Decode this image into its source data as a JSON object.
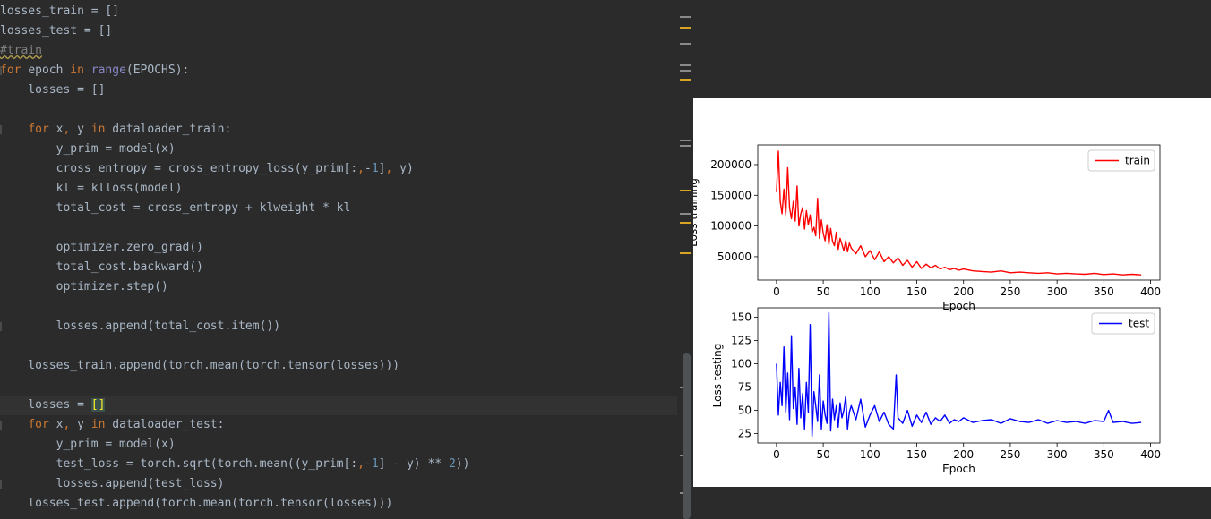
{
  "editor": {
    "lines": [
      [
        {
          "t": "losses_train = []",
          "c": "op"
        }
      ],
      [
        {
          "t": "losses_test = []",
          "c": "op"
        }
      ],
      [
        {
          "t": "#train",
          "c": "cm typo"
        }
      ],
      [
        {
          "t": "for ",
          "c": "kw"
        },
        {
          "t": "epoch ",
          "c": "op"
        },
        {
          "t": "in ",
          "c": "kw"
        },
        {
          "t": "range",
          "c": "bi"
        },
        {
          "t": "(EPOCHS):",
          "c": "op"
        }
      ],
      [
        {
          "t": "    losses = []",
          "c": "op"
        }
      ],
      [],
      [
        {
          "t": "    ",
          "c": "op"
        },
        {
          "t": "for ",
          "c": "kw"
        },
        {
          "t": "x",
          "c": "op"
        },
        {
          "t": ", ",
          "c": "kw"
        },
        {
          "t": "y ",
          "c": "op"
        },
        {
          "t": "in ",
          "c": "kw"
        },
        {
          "t": "dataloader_train:",
          "c": "op"
        }
      ],
      [
        {
          "t": "        y_prim = model(x)",
          "c": "op"
        }
      ],
      [
        {
          "t": "        cross_entropy = cross_entropy_loss(y_prim[:",
          "c": "op"
        },
        {
          "t": ",",
          "c": "kw"
        },
        {
          "t": "-",
          "c": "op"
        },
        {
          "t": "1",
          "c": "num"
        },
        {
          "t": "]",
          "c": "op"
        },
        {
          "t": ", ",
          "c": "kw"
        },
        {
          "t": "y)",
          "c": "op"
        }
      ],
      [
        {
          "t": "        kl = klloss(model)",
          "c": "op"
        }
      ],
      [
        {
          "t": "        total_cost = cross_entropy + klweight * kl",
          "c": "op"
        }
      ],
      [],
      [
        {
          "t": "        optimizer.zero_grad()",
          "c": "op"
        }
      ],
      [
        {
          "t": "        total_cost.backward()",
          "c": "op"
        }
      ],
      [
        {
          "t": "        optimizer.step()",
          "c": "op"
        }
      ],
      [],
      [
        {
          "t": "        losses.append(total_cost.item())",
          "c": "op"
        }
      ],
      [],
      [
        {
          "t": "    losses_train.append(torch.mean(torch.tensor(losses)))",
          "c": "op"
        }
      ],
      [],
      [
        {
          "t": "    losses = ",
          "c": "op"
        },
        {
          "t": "[]",
          "c": "hl"
        }
      ],
      [
        {
          "t": "    ",
          "c": "op"
        },
        {
          "t": "for ",
          "c": "kw"
        },
        {
          "t": "x",
          "c": "op"
        },
        {
          "t": ", ",
          "c": "kw"
        },
        {
          "t": "y ",
          "c": "op"
        },
        {
          "t": "in ",
          "c": "kw"
        },
        {
          "t": "dataloader_test:",
          "c": "op"
        }
      ],
      [
        {
          "t": "        y_prim = model(x)",
          "c": "op"
        }
      ],
      [
        {
          "t": "        test_loss = torch.sqrt(torch.mean((y_prim[:",
          "c": "op"
        },
        {
          "t": ",",
          "c": "kw"
        },
        {
          "t": "-",
          "c": "op"
        },
        {
          "t": "1",
          "c": "num"
        },
        {
          "t": "] - y) ** ",
          "c": "op"
        },
        {
          "t": "2",
          "c": "num"
        },
        {
          "t": "))",
          "c": "op"
        }
      ],
      [
        {
          "t": "        losses.append(test_loss)",
          "c": "op"
        }
      ],
      [
        {
          "t": "    losses_test.append(torch.mean(torch.tensor(losses)))",
          "c": "op"
        }
      ]
    ],
    "current_line": 20,
    "colors": {
      "background": "#2b2b2b",
      "keyword": "#cc7832",
      "builtin": "#8888c6",
      "number": "#6897bb",
      "comment": "#808080",
      "text": "#a9b7c6"
    }
  },
  "chart_data": [
    {
      "type": "line",
      "title": "",
      "xlabel": "Epoch",
      "ylabel": "Loss training",
      "xlim": [
        -20,
        410
      ],
      "ylim": [
        12000,
        232000
      ],
      "xticks": [
        0,
        50,
        100,
        150,
        200,
        250,
        300,
        350,
        400
      ],
      "yticks": [
        50000,
        100000,
        150000,
        200000
      ],
      "yticklabels": [
        "50000",
        "100000",
        "150000",
        "200000"
      ],
      "legend": "top-right",
      "grid": false,
      "series": [
        {
          "name": "train",
          "color": "#ff0000",
          "x": [
            0,
            2,
            4,
            6,
            8,
            10,
            12,
            14,
            16,
            18,
            20,
            22,
            24,
            26,
            28,
            30,
            32,
            34,
            36,
            38,
            40,
            42,
            44,
            46,
            48,
            50,
            52,
            54,
            56,
            58,
            60,
            62,
            64,
            66,
            68,
            70,
            72,
            74,
            76,
            78,
            80,
            85,
            90,
            95,
            100,
            105,
            110,
            115,
            120,
            125,
            130,
            135,
            140,
            145,
            150,
            155,
            160,
            165,
            170,
            175,
            180,
            185,
            190,
            195,
            200,
            210,
            220,
            230,
            240,
            250,
            260,
            270,
            280,
            290,
            300,
            310,
            320,
            330,
            340,
            350,
            360,
            370,
            380,
            390
          ],
          "y": [
            155000,
            222000,
            140000,
            120000,
            160000,
            118000,
            195000,
            130000,
            112000,
            140000,
            108000,
            165000,
            100000,
            120000,
            130000,
            95000,
            125000,
            102000,
            118000,
            90000,
            98000,
            84000,
            145000,
            80000,
            110000,
            88000,
            76000,
            102000,
            70000,
            96000,
            75000,
            68000,
            90000,
            62000,
            80000,
            70000,
            60000,
            76000,
            58000,
            72000,
            64000,
            55000,
            68000,
            50000,
            60000,
            45000,
            58000,
            42000,
            50000,
            40000,
            48000,
            36000,
            44000,
            33000,
            42000,
            31000,
            38000,
            32000,
            36000,
            30000,
            33000,
            29000,
            31000,
            28000,
            30000,
            27000,
            26000,
            25000,
            27000,
            24000,
            25000,
            24000,
            23000,
            24000,
            22000,
            23000,
            22000,
            21500,
            23000,
            21000,
            22000,
            20500,
            21500,
            20500
          ]
        }
      ]
    },
    {
      "type": "line",
      "title": "",
      "xlabel": "Epoch",
      "ylabel": "Loss testing",
      "xlim": [
        -20,
        410
      ],
      "ylim": [
        15,
        160
      ],
      "xticks": [
        0,
        50,
        100,
        150,
        200,
        250,
        300,
        350,
        400
      ],
      "yticks": [
        25,
        50,
        75,
        100,
        125,
        150
      ],
      "yticklabels": [
        "25",
        "50",
        "75",
        "100",
        "125",
        "150"
      ],
      "legend": "top-right",
      "grid": false,
      "series": [
        {
          "name": "test",
          "color": "#0000ff",
          "x": [
            0,
            2,
            4,
            6,
            8,
            10,
            12,
            14,
            16,
            18,
            20,
            22,
            24,
            26,
            28,
            30,
            32,
            34,
            36,
            38,
            40,
            42,
            44,
            46,
            48,
            50,
            52,
            54,
            56,
            58,
            60,
            62,
            64,
            66,
            68,
            70,
            72,
            74,
            76,
            78,
            80,
            85,
            90,
            95,
            100,
            105,
            110,
            115,
            120,
            125,
            128,
            130,
            135,
            140,
            145,
            150,
            155,
            160,
            165,
            170,
            175,
            180,
            185,
            190,
            195,
            200,
            210,
            220,
            230,
            240,
            250,
            260,
            270,
            280,
            290,
            300,
            310,
            320,
            330,
            340,
            350,
            355,
            360,
            370,
            380,
            390
          ],
          "y": [
            100,
            45,
            80,
            55,
            118,
            48,
            90,
            40,
            130,
            52,
            75,
            35,
            95,
            42,
            68,
            30,
            80,
            48,
            142,
            22,
            70,
            55,
            38,
            88,
            30,
            60,
            45,
            36,
            155,
            28,
            62,
            40,
            55,
            32,
            58,
            42,
            50,
            65,
            30,
            48,
            55,
            40,
            62,
            32,
            45,
            55,
            38,
            48,
            35,
            30,
            88,
            42,
            36,
            50,
            33,
            45,
            37,
            48,
            35,
            42,
            38,
            45,
            36,
            40,
            38,
            42,
            37,
            39,
            40,
            36,
            41,
            38,
            37,
            40,
            36,
            39,
            37,
            38,
            36,
            39,
            38,
            50,
            37,
            38,
            36,
            37
          ]
        }
      ]
    }
  ]
}
